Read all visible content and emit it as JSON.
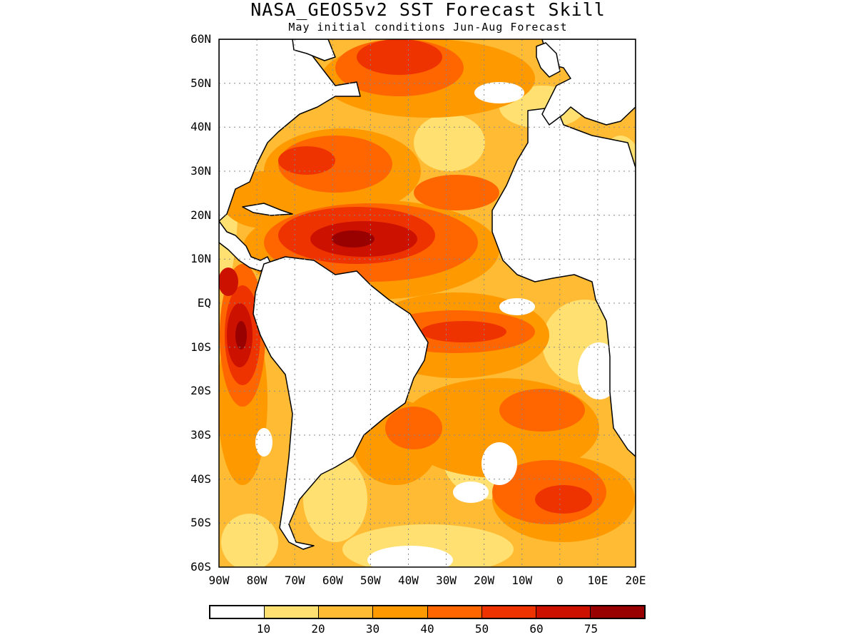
{
  "map": {
    "title": "NASA_GEOS5v2  SST Forecast Skill",
    "subtitle": "May initial conditions  Jun-Aug Forecast",
    "extent": {
      "lon_min": -90,
      "lon_max": 20,
      "lat_min": -60,
      "lat_max": 60
    },
    "gridlines": "dotted, every 10 degrees",
    "lat_ticks": [
      {
        "label": "60N",
        "lat": 60
      },
      {
        "label": "50N",
        "lat": 50
      },
      {
        "label": "40N",
        "lat": 40
      },
      {
        "label": "30N",
        "lat": 30
      },
      {
        "label": "20N",
        "lat": 20
      },
      {
        "label": "10N",
        "lat": 10
      },
      {
        "label": "EQ",
        "lat": 0
      },
      {
        "label": "10S",
        "lat": -10
      },
      {
        "label": "20S",
        "lat": -20
      },
      {
        "label": "30S",
        "lat": -30
      },
      {
        "label": "40S",
        "lat": -40
      },
      {
        "label": "50S",
        "lat": -50
      },
      {
        "label": "60S",
        "lat": -60
      }
    ],
    "lon_ticks": [
      {
        "label": "90W",
        "lon": -90
      },
      {
        "label": "80W",
        "lon": -80
      },
      {
        "label": "70W",
        "lon": -70
      },
      {
        "label": "60W",
        "lon": -60
      },
      {
        "label": "50W",
        "lon": -50
      },
      {
        "label": "40W",
        "lon": -40
      },
      {
        "label": "30W",
        "lon": -30
      },
      {
        "label": "20W",
        "lon": -20
      },
      {
        "label": "10W",
        "lon": -10
      },
      {
        "label": "0",
        "lon": 0
      },
      {
        "label": "10E",
        "lon": 10
      },
      {
        "label": "20E",
        "lon": 20
      }
    ],
    "colorbar": {
      "colors": [
        "#ffffff",
        "#ffe070",
        "#ffbb33",
        "#ff9900",
        "#ff6600",
        "#ee3300",
        "#cc1100",
        "#990000"
      ],
      "labels": [
        "10",
        "20",
        "30",
        "40",
        "50",
        "60",
        "75"
      ]
    }
  }
}
